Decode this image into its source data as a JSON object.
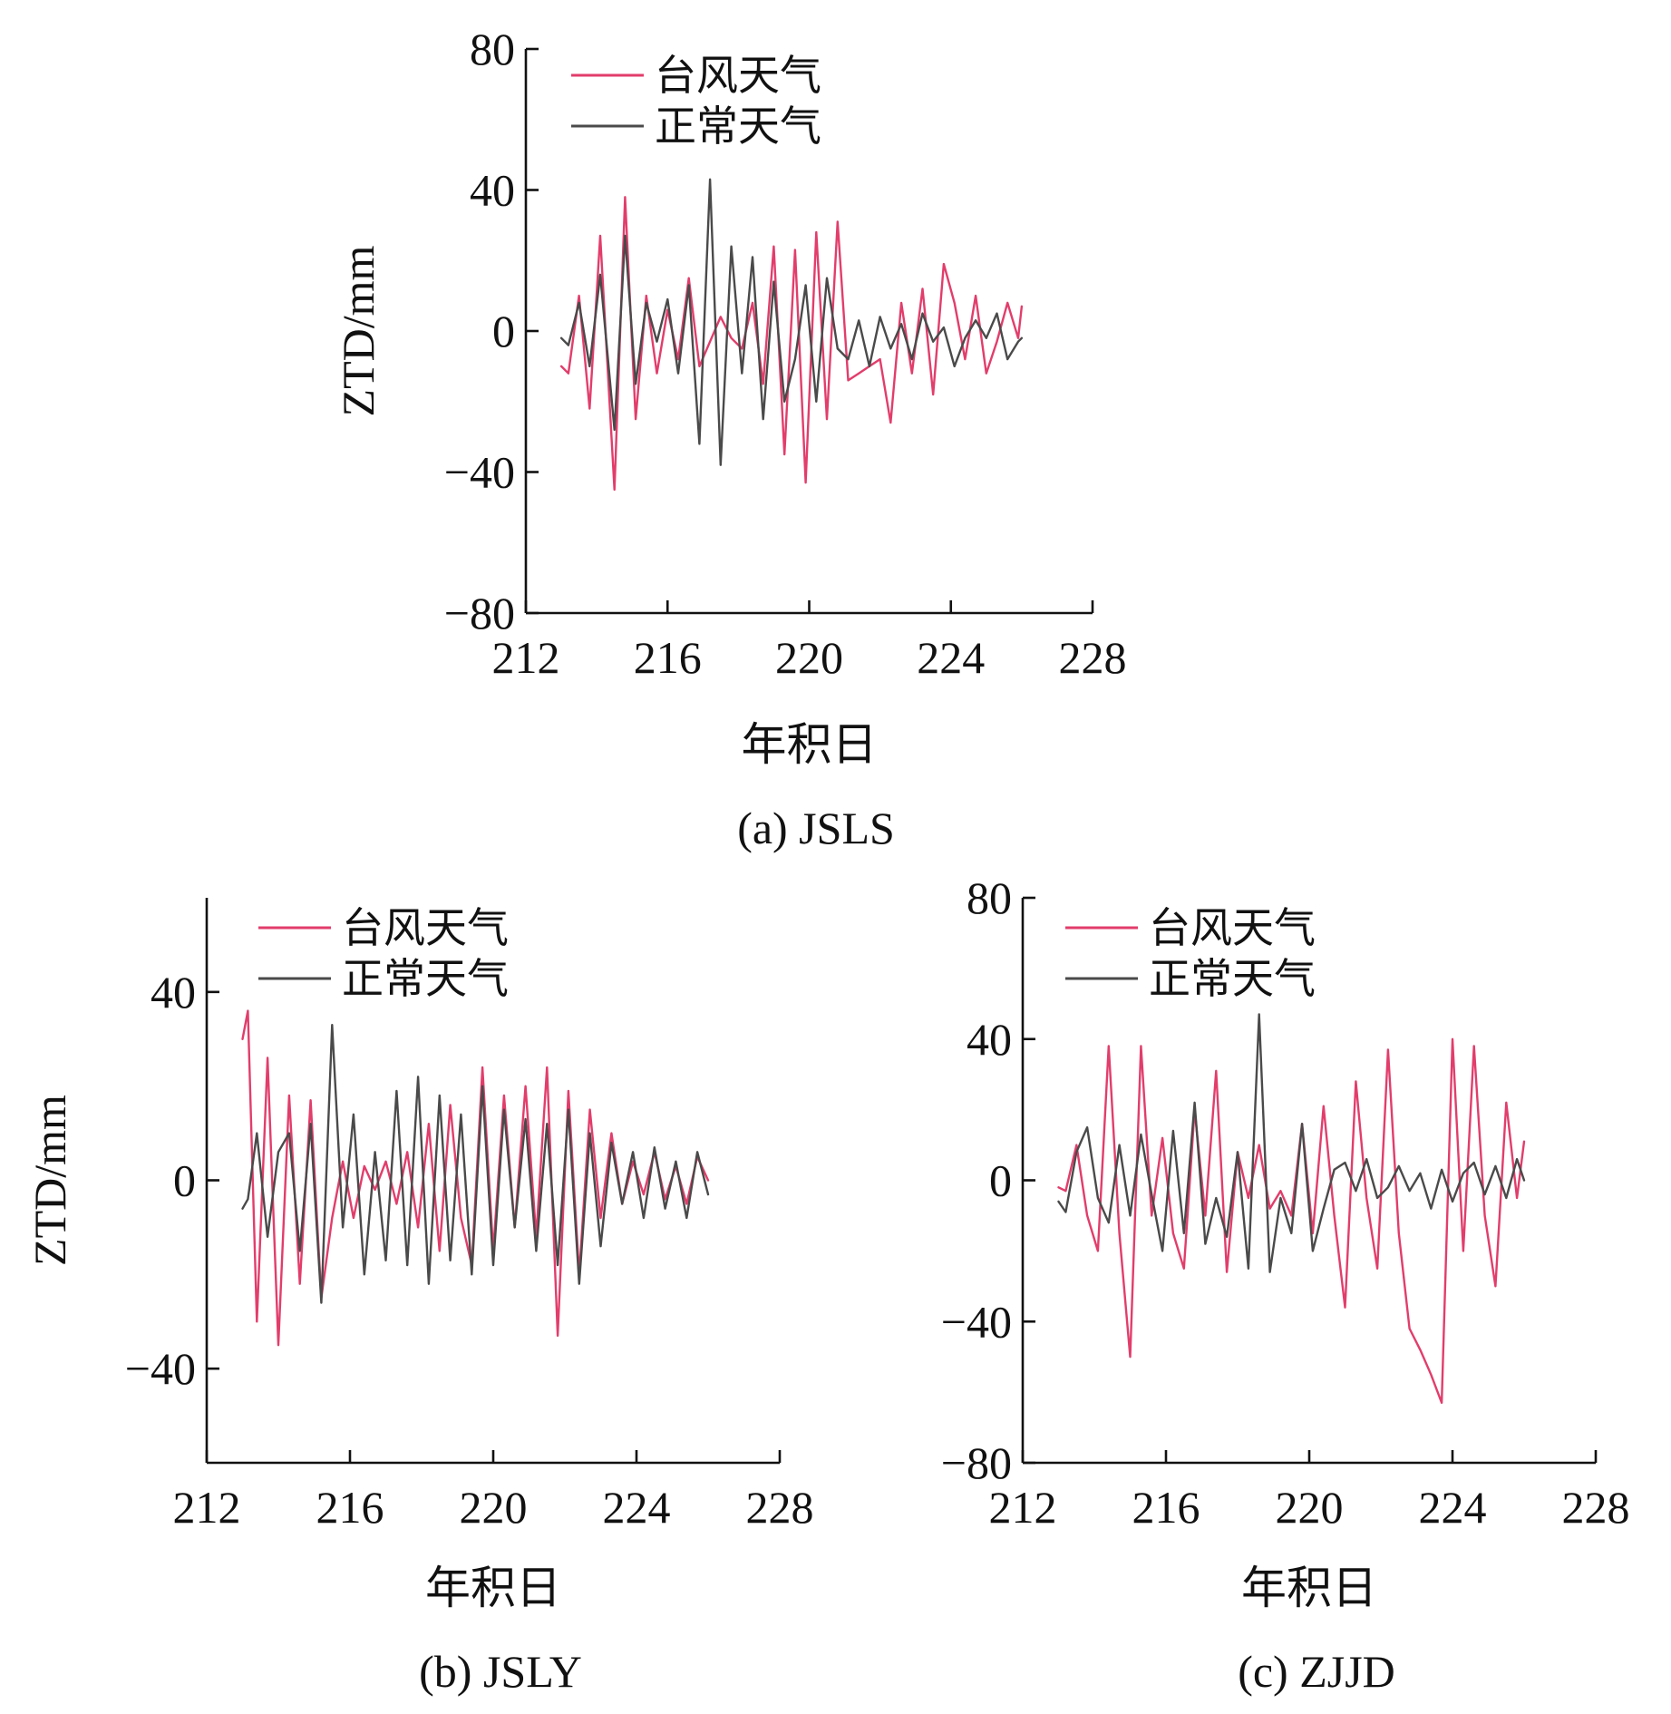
{
  "colors": {
    "typhoon": "#e23d6b",
    "normal": "#4a4a4a"
  },
  "chart_data": [
    {
      "type": "line",
      "caption": "(a) JSLS",
      "xlabel": "年积日",
      "ylabel": "ZTD/mm",
      "xlim": [
        212,
        228
      ],
      "ylim": [
        -80,
        80
      ],
      "xticks": [
        212,
        216,
        220,
        224,
        228
      ],
      "yticks": [
        -80,
        -40,
        0,
        40,
        80
      ],
      "legend": "top-left",
      "series": [
        {
          "name": "台风天气",
          "color": "#e23d6b",
          "x": [
            213.0,
            213.2,
            213.5,
            213.8,
            214.1,
            214.5,
            214.8,
            215.1,
            215.4,
            215.7,
            216.0,
            216.3,
            216.6,
            216.9,
            217.2,
            217.5,
            217.8,
            218.1,
            218.4,
            218.7,
            219.0,
            219.3,
            219.6,
            219.9,
            220.2,
            220.5,
            220.8,
            221.1,
            221.4,
            221.7,
            222.0,
            222.3,
            222.6,
            222.9,
            223.2,
            223.5,
            223.8,
            224.1,
            224.4,
            224.7,
            225.0,
            225.3,
            225.6,
            225.9,
            226.0
          ],
          "y": [
            -10,
            -12,
            10,
            -22,
            27,
            -45,
            38,
            -25,
            10,
            -12,
            6,
            -8,
            15,
            -10,
            -3,
            4,
            -2,
            -5,
            8,
            -15,
            24,
            -35,
            23,
            -43,
            28,
            -25,
            31,
            -14,
            -12,
            -10,
            -8,
            -26,
            8,
            -12,
            12,
            -18,
            19,
            8,
            -8,
            10,
            -12,
            -3,
            8,
            -2,
            7
          ]
        },
        {
          "name": "正常天气",
          "color": "#4a4a4a",
          "x": [
            213.0,
            213.2,
            213.5,
            213.8,
            214.1,
            214.5,
            214.8,
            215.1,
            215.4,
            215.7,
            216.0,
            216.3,
            216.6,
            216.9,
            217.2,
            217.5,
            217.8,
            218.1,
            218.4,
            218.7,
            219.0,
            219.3,
            219.6,
            219.9,
            220.2,
            220.5,
            220.8,
            221.1,
            221.4,
            221.7,
            222.0,
            222.3,
            222.6,
            222.9,
            223.2,
            223.5,
            223.8,
            224.1,
            224.4,
            224.7,
            225.0,
            225.3,
            225.6,
            225.9,
            226.0
          ],
          "y": [
            -2,
            -4,
            8,
            -10,
            16,
            -28,
            27,
            -15,
            8,
            -3,
            9,
            -12,
            13,
            -32,
            43,
            -38,
            24,
            -12,
            21,
            -25,
            14,
            -20,
            -8,
            13,
            -20,
            15,
            -5,
            -8,
            3,
            -10,
            4,
            -5,
            2,
            -8,
            5,
            -3,
            1,
            -10,
            -2,
            3,
            -2,
            5,
            -8,
            -3,
            -2
          ]
        }
      ]
    },
    {
      "type": "line",
      "caption": "(b) JSLY",
      "xlabel": "年积日",
      "ylabel": "ZTD/mm",
      "xlim": [
        212,
        228
      ],
      "ylim": [
        -60,
        60
      ],
      "xticks": [
        212,
        216,
        220,
        224,
        228
      ],
      "yticks": [
        -40,
        0,
        40
      ],
      "legend": "top-left",
      "series": [
        {
          "name": "台风天气",
          "color": "#e23d6b",
          "x": [
            213.0,
            213.15,
            213.4,
            213.7,
            214.0,
            214.3,
            214.6,
            214.9,
            215.2,
            215.5,
            215.8,
            216.1,
            216.4,
            216.7,
            217.0,
            217.3,
            217.6,
            217.9,
            218.2,
            218.5,
            218.8,
            219.1,
            219.4,
            219.7,
            220.0,
            220.3,
            220.6,
            220.9,
            221.2,
            221.5,
            221.8,
            222.1,
            222.4,
            222.7,
            223.0,
            223.3,
            223.6,
            223.9,
            224.2,
            224.5,
            224.8,
            225.1,
            225.4,
            225.7,
            226.0
          ],
          "y": [
            30,
            36,
            -30,
            26,
            -35,
            18,
            -22,
            17,
            -25,
            -8,
            4,
            -8,
            3,
            -2,
            4,
            -5,
            6,
            -10,
            12,
            -15,
            16,
            -8,
            -18,
            24,
            -15,
            18,
            -10,
            20,
            -12,
            24,
            -33,
            19,
            -20,
            15,
            -8,
            10,
            -5,
            4,
            -3,
            6,
            -4,
            3,
            -5,
            5,
            0
          ]
        },
        {
          "name": "正常天气",
          "color": "#4a4a4a",
          "x": [
            213.0,
            213.15,
            213.4,
            213.7,
            214.0,
            214.3,
            214.6,
            214.9,
            215.2,
            215.5,
            215.8,
            216.1,
            216.4,
            216.7,
            217.0,
            217.3,
            217.6,
            217.9,
            218.2,
            218.5,
            218.8,
            219.1,
            219.4,
            219.7,
            220.0,
            220.3,
            220.6,
            220.9,
            221.2,
            221.5,
            221.8,
            222.1,
            222.4,
            222.7,
            223.0,
            223.3,
            223.6,
            223.9,
            224.2,
            224.5,
            224.8,
            225.1,
            225.4,
            225.7,
            226.0
          ],
          "y": [
            -6,
            -4,
            10,
            -12,
            6,
            10,
            -15,
            12,
            -26,
            33,
            -10,
            14,
            -20,
            6,
            -17,
            19,
            -18,
            22,
            -22,
            18,
            -17,
            14,
            -20,
            20,
            -18,
            15,
            -10,
            13,
            -15,
            12,
            -18,
            15,
            -22,
            10,
            -14,
            8,
            -5,
            6,
            -8,
            7,
            -6,
            4,
            -8,
            6,
            -3
          ]
        }
      ]
    },
    {
      "type": "line",
      "caption": "(c) ZJJD",
      "xlabel": "年积日",
      "ylabel": "",
      "xlim": [
        212,
        228
      ],
      "ylim": [
        -80,
        80
      ],
      "xticks": [
        212,
        216,
        220,
        224,
        228
      ],
      "yticks": [
        -80,
        -40,
        0,
        40,
        80
      ],
      "legend": "top-left",
      "series": [
        {
          "name": "台风天气",
          "color": "#e23d6b",
          "x": [
            213.0,
            213.2,
            213.5,
            213.8,
            214.1,
            214.4,
            214.7,
            215.0,
            215.3,
            215.6,
            215.9,
            216.2,
            216.5,
            216.8,
            217.1,
            217.4,
            217.7,
            218.0,
            218.3,
            218.6,
            218.9,
            219.2,
            219.5,
            219.8,
            220.1,
            220.4,
            220.7,
            221.0,
            221.3,
            221.6,
            221.9,
            222.2,
            222.5,
            222.8,
            223.1,
            223.4,
            223.7,
            224.0,
            224.3,
            224.6,
            224.9,
            225.2,
            225.5,
            225.8,
            226.0
          ],
          "y": [
            -2,
            -3,
            10,
            -10,
            -20,
            38,
            -15,
            -50,
            38,
            -10,
            12,
            -15,
            -25,
            20,
            -10,
            31,
            -26,
            8,
            -5,
            10,
            -8,
            -3,
            -10,
            16,
            -15,
            21,
            -10,
            -36,
            28,
            -5,
            -25,
            37,
            -15,
            -42,
            -48,
            -55,
            -63,
            40,
            -20,
            38,
            -10,
            -30,
            22,
            -5,
            11
          ]
        },
        {
          "name": "正常天气",
          "color": "#4a4a4a",
          "x": [
            213.0,
            213.2,
            213.5,
            213.8,
            214.1,
            214.4,
            214.7,
            215.0,
            215.3,
            215.6,
            215.9,
            216.2,
            216.5,
            216.8,
            217.1,
            217.4,
            217.7,
            218.0,
            218.3,
            218.6,
            218.9,
            219.2,
            219.5,
            219.8,
            220.1,
            220.4,
            220.7,
            221.0,
            221.3,
            221.6,
            221.9,
            222.2,
            222.5,
            222.8,
            223.1,
            223.4,
            223.7,
            224.0,
            224.3,
            224.6,
            224.9,
            225.2,
            225.5,
            225.8,
            226.0
          ],
          "y": [
            -6,
            -9,
            8,
            15,
            -5,
            -12,
            10,
            -10,
            13,
            -4,
            -20,
            14,
            -15,
            22,
            -18,
            -5,
            -16,
            8,
            -25,
            47,
            -26,
            -5,
            -15,
            16,
            -20,
            -8,
            3,
            5,
            -3,
            6,
            -5,
            -2,
            4,
            -3,
            2,
            -8,
            3,
            -6,
            2,
            5,
            -4,
            4,
            -5,
            6,
            0
          ]
        }
      ]
    }
  ]
}
